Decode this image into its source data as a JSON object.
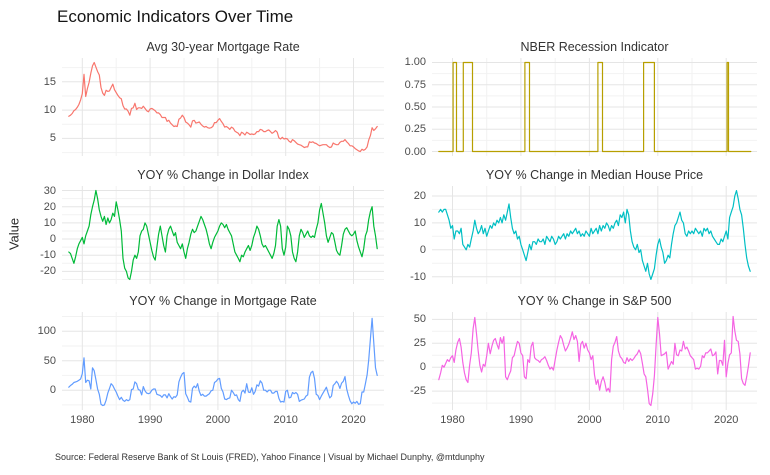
{
  "page": {
    "title": "Economic Indicators Over Time",
    "y_axis_label": "Value",
    "source_note": "Source: Federal Reserve Bank of St Louis (FRED), Yahoo Finance | Visual by Michael Dunphy, @mtdunphy"
  },
  "chart_data": {
    "type": "line",
    "title": "Economic Indicators Over Time",
    "ylabel": "Value",
    "layout_hint": "2x3 facet grid, grid on, no legend, minimal theme, x labels only on bottom row",
    "style": {
      "background": "#ffffff",
      "grid_major": "#e5e5e5",
      "grid_minor": "#f2f2f2"
    },
    "x_axis": {
      "domain": [
        1977,
        2024.5
      ],
      "major_ticks": [
        1980,
        1990,
        2000,
        2010,
        2020
      ],
      "minor_ticks": [
        1985,
        1995,
        2005,
        2015
      ],
      "tick_labels": [
        "1980",
        "1990",
        "2000",
        "2010",
        "2020"
      ]
    },
    "panels": [
      {
        "title": "Avg 30-year Mortgage Rate",
        "color": "#F8766D",
        "ylim": [
          1.9,
          19.2
        ],
        "y_ticks": [
          5,
          10,
          15
        ],
        "y_tick_labels": [
          "5",
          "10",
          "15"
        ],
        "y_minor": [
          2.5,
          7.5,
          12.5,
          17.5
        ],
        "series": {
          "x_start": 1978,
          "x_step": 0.25,
          "values": [
            8.9,
            9.1,
            9.4,
            9.9,
            10.1,
            10.5,
            11.0,
            11.8,
            12.9,
            16.3,
            12.4,
            13.8,
            14.9,
            16.5,
            17.8,
            18.4,
            17.6,
            16.8,
            16.2,
            14.0,
            13.0,
            12.6,
            13.5,
            13.3,
            13.4,
            14.0,
            14.6,
            13.6,
            13.1,
            12.6,
            12.2,
            12.0,
            10.8,
            10.2,
            10.2,
            9.8,
            9.1,
            10.3,
            10.4,
            11.2,
            10.1,
            10.4,
            10.4,
            10.3,
            10.7,
            10.3,
            9.9,
            9.7,
            10.2,
            10.3,
            10.1,
            9.9,
            9.5,
            9.5,
            9.2,
            8.7,
            8.7,
            8.7,
            8.0,
            8.2,
            7.7,
            7.4,
            7.1,
            7.2,
            7.1,
            8.4,
            8.6,
            9.1,
            8.7,
            7.9,
            7.7,
            7.4,
            7.0,
            8.1,
            8.2,
            7.7,
            7.8,
            7.9,
            7.5,
            7.2,
            7.0,
            7.1,
            6.9,
            6.8,
            6.9,
            7.1,
            7.8,
            7.8,
            8.2,
            8.5,
            8.0,
            7.6,
            7.0,
            7.1,
            6.9,
            6.6,
            7.0,
            6.8,
            6.3,
            6.1,
            5.9,
            5.5,
            6.1,
            5.9,
            5.6,
            6.1,
            5.9,
            5.7,
            5.8,
            5.7,
            5.8,
            6.2,
            6.2,
            6.6,
            6.5,
            6.2,
            6.2,
            6.4,
            6.5,
            6.2,
            5.9,
            6.1,
            6.4,
            6.1,
            5.1,
            4.9,
            5.2,
            4.9,
            5.0,
            4.9,
            4.5,
            4.3,
            4.8,
            4.6,
            4.3,
            4.0,
            3.9,
            3.8,
            3.6,
            3.4,
            3.5,
            3.5,
            4.4,
            4.3,
            4.4,
            4.2,
            4.1,
            3.9,
            3.7,
            3.8,
            3.9,
            3.9,
            3.9,
            3.6,
            3.4,
            3.5,
            4.2,
            4.0,
            3.9,
            3.9,
            4.3,
            4.5,
            4.5,
            4.8,
            4.4,
            4.1,
            3.7,
            3.7,
            3.5,
            3.2,
            3.0,
            2.8,
            2.7,
            3.1,
            2.9,
            3.1,
            3.5,
            4.7,
            5.5,
            6.9,
            6.4,
            6.7,
            7.1
          ]
        }
      },
      {
        "title": "NBER Recession Indicator",
        "color": "#B79F00",
        "ylim": [
          -0.05,
          1.05
        ],
        "y_ticks": [
          0,
          0.25,
          0.5,
          0.75,
          1
        ],
        "y_tick_labels": [
          "0.00",
          "0.25",
          "0.50",
          "0.75",
          "1.00"
        ],
        "y_minor": [
          0.125,
          0.375,
          0.625,
          0.875
        ],
        "series": {
          "type": "step",
          "x_range": [
            1978,
            2023.6
          ],
          "base_value": 0,
          "high_value": 1,
          "recession_intervals": [
            [
              1980.08,
              1980.58
            ],
            [
              1981.58,
              1982.92
            ],
            [
              1990.58,
              1991.25
            ],
            [
              2001.25,
              2001.92
            ],
            [
              2007.92,
              2009.5
            ],
            [
              2020.13,
              2020.33
            ]
          ]
        }
      },
      {
        "title": "YOY % Change in Dollar Index",
        "color": "#00BA38",
        "ylim": [
          -27.8,
          32.8
        ],
        "y_ticks": [
          -20,
          -10,
          0,
          10,
          20,
          30
        ],
        "y_tick_labels": [
          "-20",
          "-10",
          "0",
          "10",
          "20",
          "30"
        ],
        "y_minor": [
          -25,
          -15,
          -5,
          5,
          15,
          25
        ],
        "series": {
          "x_start": 1978,
          "x_step": 0.25,
          "values": [
            -8,
            -9,
            -12,
            -15,
            -11,
            -6,
            -3,
            -1,
            1,
            -3,
            2,
            5,
            8,
            15,
            20,
            24,
            30,
            25,
            18,
            14,
            11,
            14,
            9,
            13,
            10,
            12,
            16,
            14,
            23,
            18,
            12,
            5,
            -12,
            -18,
            -20,
            -24,
            -25,
            -20,
            -13,
            -10,
            -12,
            -8,
            2,
            5,
            6,
            10,
            8,
            3,
            -2,
            -7,
            -11,
            -13,
            -5,
            3,
            8,
            2,
            -4,
            -8,
            2,
            6,
            8,
            5,
            2,
            4,
            -2,
            -4,
            -6,
            -3,
            -8,
            -12,
            -6,
            -2,
            3,
            6,
            4,
            5,
            8,
            11,
            14,
            12,
            9,
            6,
            2,
            -3,
            -6,
            -2,
            1,
            3,
            5,
            8,
            10,
            9,
            7,
            9,
            6,
            4,
            2,
            -3,
            -8,
            -10,
            -12,
            -14,
            -10,
            -11,
            -8,
            -6,
            -4,
            -7,
            -4,
            1,
            4,
            8,
            6,
            2,
            -3,
            -5,
            -4,
            -6,
            -8,
            -10,
            -12,
            -9,
            -4,
            8,
            12,
            8,
            -6,
            -10,
            -5,
            8,
            6,
            2,
            -8,
            -12,
            -14,
            -8,
            2,
            6,
            4,
            1,
            3,
            5,
            2,
            1,
            2,
            1,
            6,
            10,
            18,
            22,
            16,
            10,
            2,
            -2,
            1,
            4,
            3,
            -2,
            -7,
            -9,
            -10,
            -4,
            3,
            6,
            7,
            5,
            3,
            2,
            3,
            5,
            -1,
            -5,
            -8,
            -11,
            -6,
            2,
            5,
            12,
            17,
            20,
            8,
            2,
            -6
          ]
        }
      },
      {
        "title": "YOY % Change in Median House Price",
        "color": "#00BFC4",
        "ylim": [
          -12.7,
          23.7
        ],
        "y_ticks": [
          -10,
          0,
          10,
          20
        ],
        "y_tick_labels": [
          "-10",
          "0",
          "10",
          "20"
        ],
        "y_minor": [
          -5,
          5,
          15
        ],
        "series": {
          "x_start": 1978,
          "x_step": 0.25,
          "values": [
            14,
            15,
            14,
            15,
            15,
            13,
            11,
            8,
            9,
            4,
            7,
            7,
            6,
            8,
            2,
            1,
            0,
            2,
            1,
            4,
            7,
            11,
            8,
            6,
            7,
            9,
            6,
            8,
            5,
            7,
            9,
            8,
            10,
            9,
            11,
            10,
            12,
            10,
            13,
            11,
            14,
            17,
            12,
            8,
            6,
            7,
            4,
            5,
            2,
            0,
            -2,
            -4,
            -1,
            2,
            0,
            3,
            3,
            2,
            4,
            3,
            3,
            4,
            2,
            5,
            4,
            3,
            5,
            4,
            2,
            3,
            5,
            4,
            5,
            6,
            4,
            6,
            5,
            7,
            6,
            7,
            8,
            6,
            7,
            5,
            6,
            5,
            7,
            6,
            5,
            8,
            6,
            7,
            8,
            6,
            9,
            7,
            9,
            8,
            10,
            9,
            7,
            9,
            8,
            10,
            11,
            9,
            13,
            12,
            14,
            10,
            15,
            13,
            7,
            3,
            1,
            0,
            2,
            -1,
            0,
            -4,
            -6,
            -8,
            -5,
            -9,
            -11,
            -9,
            -7,
            -2,
            2,
            4,
            1,
            -1,
            -5,
            -4,
            -2,
            -3,
            2,
            6,
            9,
            10,
            12,
            14,
            11,
            10,
            6,
            5,
            7,
            6,
            7,
            6,
            8,
            7,
            6,
            7,
            5,
            8,
            7,
            8,
            6,
            7,
            5,
            4,
            3,
            2,
            2,
            4,
            3,
            5,
            7,
            4,
            12,
            14,
            16,
            20,
            22,
            19,
            15,
            13,
            8,
            2,
            -3,
            -6,
            -8
          ]
        }
      },
      {
        "title": "YOY % Change in Mortgage Rate",
        "color": "#619CFF",
        "ylim": [
          -33.6,
          132.6
        ],
        "y_ticks": [
          0,
          50,
          100
        ],
        "y_tick_labels": [
          "0",
          "50",
          "100"
        ],
        "y_minor": [
          -25,
          25,
          75,
          125
        ],
        "series": {
          "x_start": 1978,
          "x_step": 0.25,
          "values": [
            5,
            8,
            10,
            13,
            14,
            15,
            17,
            19,
            28,
            55,
            13,
            17,
            16,
            2,
            38,
            33,
            18,
            2,
            -7,
            -24,
            -26,
            -25,
            -17,
            -5,
            3,
            11,
            8,
            2,
            -3,
            -10,
            -16,
            -12,
            -17,
            -19,
            -16,
            -18,
            -16,
            1,
            2,
            14,
            11,
            1,
            0,
            -8,
            6,
            -1,
            -5,
            -6,
            -5,
            0,
            2,
            2,
            -7,
            -8,
            -9,
            -12,
            -8,
            -8,
            -13,
            -6,
            -11,
            -15,
            -11,
            -12,
            -8,
            14,
            22,
            28,
            30,
            -6,
            -12,
            -19,
            -20,
            3,
            7,
            4,
            11,
            -2,
            -9,
            -7,
            -10,
            -10,
            -8,
            -6,
            -1,
            0,
            13,
            15,
            19,
            20,
            3,
            -3,
            -15,
            -16,
            -14,
            -13,
            0,
            -4,
            -9,
            -8,
            -16,
            -19,
            -3,
            0,
            -5,
            11,
            -3,
            -4,
            4,
            -7,
            -2,
            9,
            7,
            16,
            12,
            0,
            0,
            -3,
            0,
            0,
            -5,
            -5,
            -2,
            -2,
            -14,
            -20,
            -19,
            -20,
            -2,
            0,
            -13,
            -12,
            -4,
            -6,
            -4,
            -7,
            -19,
            -17,
            -16,
            -15,
            -10,
            -8,
            22,
            30,
            32,
            20,
            -7,
            -9,
            -16,
            -10,
            -5,
            0,
            5,
            -5,
            -13,
            -10,
            8,
            11,
            15,
            11,
            3,
            12,
            15,
            23,
            2,
            -9,
            -18,
            -23,
            -20,
            -22,
            -19,
            -24,
            -23,
            -3,
            -3,
            11,
            26,
            51,
            87,
            122,
            80,
            38,
            25
          ]
        }
      },
      {
        "title": "YOY % Change in S&P 500",
        "color": "#F564E3",
        "ylim": [
          -44.7,
          57.7
        ],
        "y_ticks": [
          -25,
          0,
          25,
          50
        ],
        "y_tick_labels": [
          "-25",
          "0",
          "25",
          "50"
        ],
        "y_minor": [
          -37.5,
          -12.5,
          12.5,
          37.5
        ],
        "series": {
          "x_start": 1978,
          "x_step": 0.25,
          "values": [
            -13,
            -6,
            2,
            0,
            4,
            8,
            6,
            10,
            12,
            5,
            18,
            26,
            30,
            21,
            5,
            -6,
            -13,
            -16,
            2,
            15,
            40,
            52,
            35,
            17,
            2,
            -5,
            3,
            1,
            12,
            25,
            14,
            22,
            28,
            30,
            24,
            19,
            31,
            25,
            32,
            -10,
            -13,
            -8,
            -4,
            10,
            12,
            20,
            27,
            25,
            15,
            12,
            -10,
            -12,
            8,
            5,
            22,
            26,
            10,
            8,
            7,
            5,
            8,
            9,
            11,
            7,
            2,
            -2,
            0,
            -3,
            8,
            18,
            26,
            33,
            30,
            23,
            17,
            20,
            24,
            30,
            37,
            29,
            33,
            27,
            6,
            24,
            27,
            20,
            25,
            18,
            15,
            8,
            12,
            -8,
            -18,
            -13,
            -24,
            -15,
            -10,
            -16,
            -25,
            -22,
            -26,
            8,
            22,
            26,
            32,
            17,
            11,
            9,
            5,
            4,
            10,
            6,
            9,
            7,
            9,
            12,
            14,
            18,
            14,
            4,
            -7,
            -10,
            -23,
            -38,
            -40,
            -28,
            -9,
            23,
            52,
            35,
            12,
            13,
            14,
            16,
            -2,
            2,
            6,
            3,
            25,
            13,
            12,
            18,
            17,
            27,
            19,
            21,
            17,
            12,
            10,
            8,
            -2,
            -1,
            -2,
            1,
            12,
            10,
            15,
            15,
            17,
            19,
            12,
            13,
            16,
            -7,
            7,
            7,
            2,
            28,
            -10,
            4,
            13,
            15,
            53,
            38,
            28,
            27,
            14,
            -12,
            -17,
            -19,
            -10,
            1,
            15
          ]
        }
      }
    ]
  }
}
